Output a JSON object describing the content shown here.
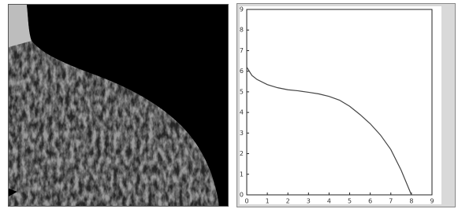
{
  "chart_data": {
    "type": "line",
    "x": [
      0,
      0.25,
      0.5,
      1,
      1.5,
      2,
      2.5,
      3,
      3.5,
      4,
      4.5,
      5,
      5.5,
      6,
      6.5,
      7,
      7.5,
      8
    ],
    "values": [
      6.2,
      5.8,
      5.6,
      5.35,
      5.2,
      5.1,
      5.05,
      4.98,
      4.9,
      4.78,
      4.6,
      4.3,
      3.9,
      3.45,
      2.9,
      2.2,
      1.2,
      0
    ],
    "color": "#444444",
    "xlim": [
      0,
      9
    ],
    "xticks": [
      0,
      1,
      2,
      3,
      4,
      5,
      6,
      7,
      8,
      9
    ],
    "ylim": [
      0,
      9
    ],
    "yticks": [
      0,
      1,
      2,
      3,
      4,
      5,
      6,
      7,
      8,
      9
    ]
  }
}
